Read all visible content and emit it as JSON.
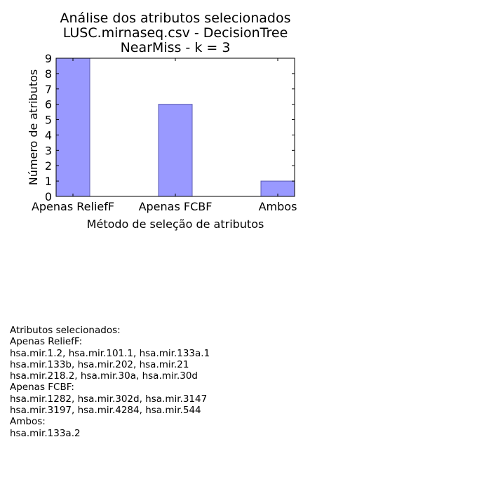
{
  "chart_data": {
    "type": "bar",
    "title": [
      "Análise dos atributos selecionados",
      "LUSC.mirnaseq.csv - DecisionTree",
      "NearMiss - k = 3"
    ],
    "categories": [
      "Apenas ReliefF",
      "Apenas FCBF",
      "Ambos"
    ],
    "values": [
      9,
      6,
      1
    ],
    "xlabel": "Método de seleção de atributos",
    "ylabel": "Número de atributos",
    "ylim": [
      0,
      9
    ],
    "yticks": [
      0,
      1,
      2,
      3,
      4,
      5,
      6,
      7,
      8,
      9
    ],
    "grid": false,
    "bar_color": "#9999ff",
    "bar_edge_color": "#5a5ab0"
  },
  "notes": [
    "Atributos selecionados:",
    "Apenas ReliefF:",
    "hsa.mir.1.2, hsa.mir.101.1, hsa.mir.133a.1",
    "hsa.mir.133b, hsa.mir.202, hsa.mir.21",
    "hsa.mir.218.2, hsa.mir.30a, hsa.mir.30d",
    "Apenas FCBF:",
    "hsa.mir.1282, hsa.mir.302d, hsa.mir.3147",
    "hsa.mir.3197, hsa.mir.4284, hsa.mir.544",
    "Ambos:",
    "hsa.mir.133a.2"
  ]
}
